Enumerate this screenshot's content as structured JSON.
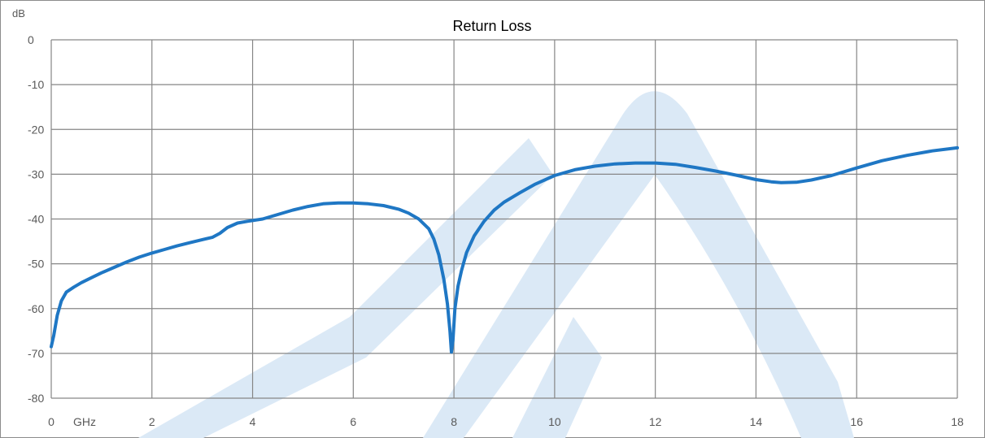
{
  "colors": {
    "line": "#1f77c4",
    "grid": "#868686",
    "watermark": "#dbe9f6",
    "text": "#595959"
  },
  "chart_data": {
    "type": "line",
    "title": "Return Loss",
    "ylabel": "dB",
    "xunit": "GHz",
    "xlim": [
      0,
      18
    ],
    "ylim": [
      -80,
      0
    ],
    "x_ticks": [
      0,
      2,
      4,
      6,
      8,
      10,
      12,
      14,
      16,
      18
    ],
    "y_ticks": [
      0,
      -10,
      -20,
      -30,
      -40,
      -50,
      -60,
      -70,
      -80
    ],
    "grid": true,
    "series": [
      {
        "x": [
          0,
          0.05,
          0.12,
          0.2,
          0.3,
          0.45,
          0.6,
          0.8,
          1,
          1.25,
          1.5,
          1.75,
          2,
          2.25,
          2.5,
          2.75,
          3,
          3.2,
          3.35,
          3.5,
          3.7,
          3.9,
          4.2,
          4.5,
          4.8,
          5.1,
          5.4,
          5.7,
          6,
          6.3,
          6.6,
          6.9,
          7.1,
          7.3,
          7.5,
          7.6,
          7.7,
          7.8,
          7.87,
          7.92,
          7.95,
          7.98,
          8.02,
          8.08,
          8.15,
          8.25,
          8.4,
          8.6,
          8.8,
          9,
          9.3,
          9.6,
          10,
          10.4,
          10.8,
          11.2,
          11.6,
          12,
          12.4,
          12.8,
          13.2,
          13.6,
          14,
          14.3,
          14.5,
          14.8,
          15.1,
          15.5,
          16,
          16.5,
          17,
          17.5,
          18
        ],
        "y": [
          -68.5,
          -66,
          -61.5,
          -58.3,
          -56.3,
          -55.2,
          -54.2,
          -53.1,
          -52,
          -50.8,
          -49.6,
          -48.5,
          -47.6,
          -46.8,
          -46,
          -45.3,
          -44.6,
          -44.1,
          -43.2,
          -41.9,
          -40.9,
          -40.5,
          -40,
          -39,
          -38,
          -37.2,
          -36.6,
          -36.4,
          -36.4,
          -36.6,
          -37,
          -37.8,
          -38.7,
          -40,
          -42.2,
          -44.5,
          -48,
          -53.5,
          -59,
          -65,
          -69.7,
          -67,
          -60,
          -55,
          -51.5,
          -47.5,
          -43.8,
          -40.5,
          -38,
          -36.2,
          -34.2,
          -32.3,
          -30.3,
          -29,
          -28.2,
          -27.7,
          -27.5,
          -27.5,
          -27.8,
          -28.5,
          -29.3,
          -30.2,
          -31.2,
          -31.7,
          -31.9,
          -31.8,
          -31.3,
          -30.3,
          -28.6,
          -27,
          -25.8,
          -24.8,
          -24.1
        ]
      }
    ]
  }
}
